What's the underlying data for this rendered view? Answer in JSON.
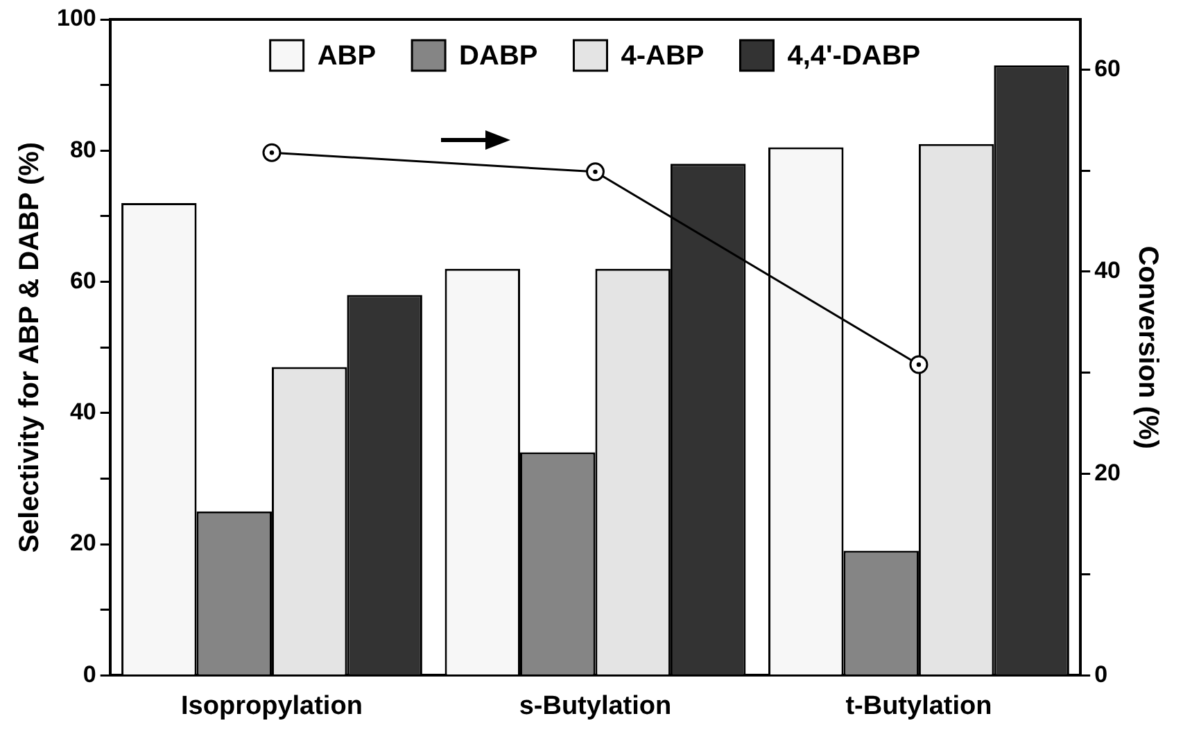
{
  "chart_data": {
    "type": "bar",
    "ylabel": "Selectivity for ABP & DABP (%)",
    "y2label": "Conversion (%)",
    "categories": [
      "Isopropylation",
      "s-Butylation",
      "t-Butylation"
    ],
    "series": [
      {
        "name": "ABP",
        "color": "#f7f7f7",
        "values": [
          72,
          62,
          80.5
        ]
      },
      {
        "name": "DABP",
        "color": "#858585",
        "values": [
          25,
          34,
          19
        ]
      },
      {
        "name": "4-ABP",
        "color": "#e4e4e4",
        "values": [
          47,
          62,
          81
        ]
      },
      {
        "name": "4,4'-DABP",
        "color": "#333333",
        "values": [
          58,
          78,
          93
        ]
      },
      {
        "type": "line",
        "axis": "y2",
        "color": "#000000",
        "values": [
          51.8,
          49.9,
          30.8
        ]
      }
    ],
    "ylim": [
      0,
      100
    ],
    "yticks": [
      0,
      {
        "value": 10,
        "label": null
      },
      20,
      {
        "value": 30,
        "label": null
      },
      40,
      {
        "value": 50,
        "label": null
      },
      60,
      {
        "value": 70,
        "label": null
      },
      80,
      {
        "value": 90,
        "label": null
      },
      100
    ],
    "y2lim": [
      0,
      65
    ],
    "y2ticks": [
      0,
      {
        "value": 10,
        "label": null
      },
      20,
      {
        "value": 30,
        "label": null
      },
      40,
      {
        "value": 50,
        "label": null
      },
      60
    ],
    "grid": false,
    "legend": "top",
    "marker": "circle",
    "line_style": "solid"
  }
}
